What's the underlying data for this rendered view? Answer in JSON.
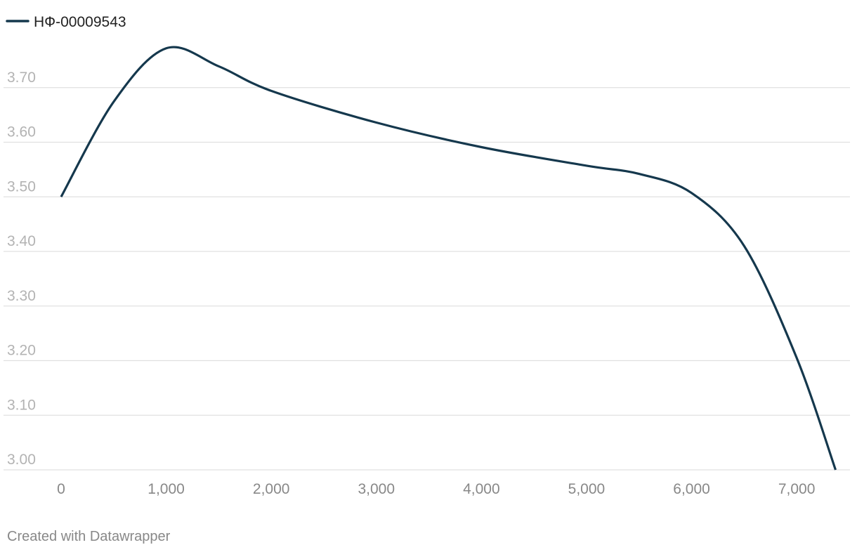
{
  "chart_data": {
    "type": "line",
    "x": [
      0,
      500,
      1000,
      1500,
      2000,
      3000,
      4000,
      5000,
      5500,
      6000,
      6500,
      7000,
      7370
    ],
    "series": [
      {
        "name": "НФ-00009543",
        "color": "#15384d",
        "values": [
          3.5,
          3.674,
          3.772,
          3.739,
          3.694,
          3.636,
          3.591,
          3.557,
          3.542,
          3.507,
          3.41,
          3.205,
          3.0
        ]
      }
    ],
    "xlim": [
      0,
      7370
    ],
    "xticks": [
      0,
      {
        "value": 1000,
        "label": "1,000"
      },
      {
        "value": 2000,
        "label": "2,000"
      },
      {
        "value": 3000,
        "label": "3,000"
      },
      {
        "value": 4000,
        "label": "4,000"
      },
      {
        "value": 5000,
        "label": "5,000"
      },
      {
        "value": 6000,
        "label": "6,000"
      },
      {
        "value": 7000,
        "label": "7,000"
      }
    ],
    "ylim": [
      3.0,
      3.8
    ],
    "yticks": [
      {
        "value": 3.0,
        "label": "3.00"
      },
      {
        "value": 3.1,
        "label": "3.10"
      },
      {
        "value": 3.2,
        "label": "3.20"
      },
      {
        "value": 3.3,
        "label": "3.30"
      },
      {
        "value": 3.4,
        "label": "3.40"
      },
      {
        "value": 3.5,
        "label": "3.50"
      },
      {
        "value": 3.6,
        "label": "3.60"
      },
      {
        "value": 3.7,
        "label": "3.70"
      }
    ],
    "grid": true,
    "legend": "top-left",
    "footer": "Created with Datawrapper"
  }
}
